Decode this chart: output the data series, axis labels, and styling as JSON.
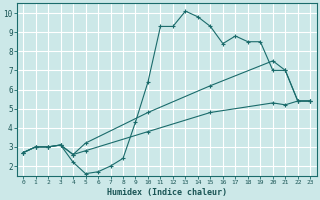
{
  "xlabel": "Humidex (Indice chaleur)",
  "background_color": "#cce8e8",
  "grid_color": "#ffffff",
  "line_color": "#1a6b6b",
  "tick_color": "#1a5555",
  "xlim": [
    -0.5,
    23.5
  ],
  "ylim": [
    1.5,
    10.5
  ],
  "yticks": [
    2,
    3,
    4,
    5,
    6,
    7,
    8,
    9,
    10
  ],
  "xticks": [
    0,
    1,
    2,
    3,
    4,
    5,
    6,
    7,
    8,
    9,
    10,
    11,
    12,
    13,
    14,
    15,
    16,
    17,
    18,
    19,
    20,
    21,
    22,
    23
  ],
  "line1_x": [
    0,
    1,
    2,
    3,
    4,
    5,
    6,
    7,
    8,
    9,
    10,
    11,
    12,
    13,
    14,
    15,
    16,
    17,
    18,
    19,
    20,
    21,
    22,
    23
  ],
  "line1_y": [
    2.7,
    3.0,
    3.0,
    3.1,
    2.2,
    1.6,
    1.7,
    2.0,
    2.4,
    4.3,
    6.4,
    9.3,
    9.3,
    10.1,
    9.8,
    9.3,
    8.4,
    8.8,
    8.5,
    8.5,
    7.0,
    7.0,
    5.4,
    5.4
  ],
  "line2_x": [
    0,
    1,
    2,
    3,
    4,
    5,
    10,
    15,
    20,
    21,
    22,
    23
  ],
  "line2_y": [
    2.7,
    3.0,
    3.0,
    3.1,
    2.6,
    3.2,
    4.8,
    6.2,
    7.5,
    7.0,
    5.4,
    5.4
  ],
  "line3_x": [
    0,
    1,
    2,
    3,
    4,
    5,
    10,
    15,
    20,
    21,
    22,
    23
  ],
  "line3_y": [
    2.7,
    3.0,
    3.0,
    3.1,
    2.6,
    2.8,
    3.8,
    4.8,
    5.3,
    5.2,
    5.4,
    5.4
  ]
}
